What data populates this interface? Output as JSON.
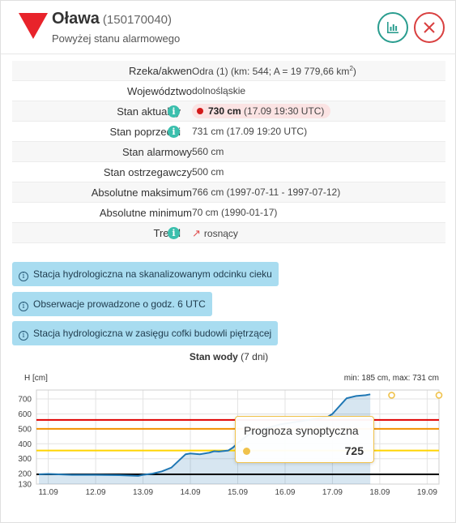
{
  "header": {
    "station_name": "Oława",
    "station_code": "(150170040)",
    "status": "Powyżej stanu alarmowego",
    "warning_color": "#e8232b"
  },
  "rows": [
    {
      "label": "Rzeka/akwen",
      "value": "Odra (1) (km: 544; A = 19 779,66 km",
      "sup": "2",
      "tail": ")"
    },
    {
      "label": "Województwo",
      "value": "dolnośląskie"
    },
    {
      "label": "Stan aktualny",
      "value_bold": "730 cm",
      "value": "(17.09 19:30 UTC)"
    },
    {
      "label": "Stan poprzedni",
      "value": "731 cm (17.09 19:20 UTC)"
    },
    {
      "label": "Stan alarmowy",
      "value": "560 cm"
    },
    {
      "label": "Stan ostrzegawczy",
      "value": "500 cm"
    },
    {
      "label": "Absolutne maksimum",
      "value": "766 cm (1997-07-11 - 1997-07-12)"
    },
    {
      "label": "Absolutne minimum",
      "value": "70 cm (1990-01-17)"
    },
    {
      "label": "Trend",
      "value": "rosnący"
    }
  ],
  "notes": [
    "Stacja hydrologiczna na skanalizowanym odcinku cieku",
    "Obserwacje prowadzone o godz. 6 UTC",
    "Stacja hydrologiczna w zasięgu cofki budowli piętrzącej"
  ],
  "chart": {
    "title_bold": "Stan wody",
    "title_rest": " (7 dni)",
    "y_unit": "H [cm]",
    "minmax": "min: 185 cm, max: 731 cm"
  },
  "tooltip": {
    "title": "Prognoza synoptyczna",
    "value": "725"
  },
  "chart_data": {
    "type": "line",
    "title": "Stan wody (7 dni)",
    "ylabel": "H [cm]",
    "ylim": [
      130,
      760
    ],
    "y_ticks": [
      130,
      200,
      300,
      400,
      500,
      600,
      700
    ],
    "x_ticks": [
      "11.09",
      "12.09",
      "13.09",
      "14.09",
      "15.09",
      "16.09",
      "17.09",
      "18.09",
      "19.09"
    ],
    "thresholds": [
      {
        "name": "Stan alarmowy",
        "value": 560,
        "color": "#e00000"
      },
      {
        "name": "Stan ostrzegawczy",
        "value": 500,
        "color": "#f29100"
      },
      {
        "value": 355,
        "color": "#ffd400"
      },
      {
        "value": 195,
        "color": "#000000"
      }
    ],
    "series": [
      {
        "color": "#1f77b4",
        "x": [
          10.8,
          11.0,
          11.5,
          12.0,
          12.5,
          12.9,
          13.0,
          13.2,
          13.4,
          13.6,
          13.8,
          13.9,
          14.0,
          14.2,
          14.4,
          14.5,
          14.6,
          14.8,
          14.9,
          15.0,
          15.1,
          15.2,
          15.3,
          15.5,
          15.7,
          15.9,
          16.1,
          16.3,
          16.5,
          16.7,
          16.9,
          17.0,
          17.1,
          17.2,
          17.3,
          17.5,
          17.7,
          17.8
        ],
        "y": [
          195,
          198,
          192,
          192,
          190,
          185,
          192,
          200,
          215,
          240,
          300,
          330,
          335,
          330,
          340,
          350,
          348,
          355,
          375,
          405,
          430,
          455,
          475,
          495,
          512,
          530,
          540,
          550,
          560,
          570,
          580,
          600,
          635,
          670,
          705,
          720,
          725,
          731
        ]
      },
      {
        "name": "Prognoza synoptyczna",
        "color": "#f0c24b",
        "x": [
          18.25,
          19.25
        ],
        "y": [
          725,
          725
        ]
      }
    ]
  }
}
